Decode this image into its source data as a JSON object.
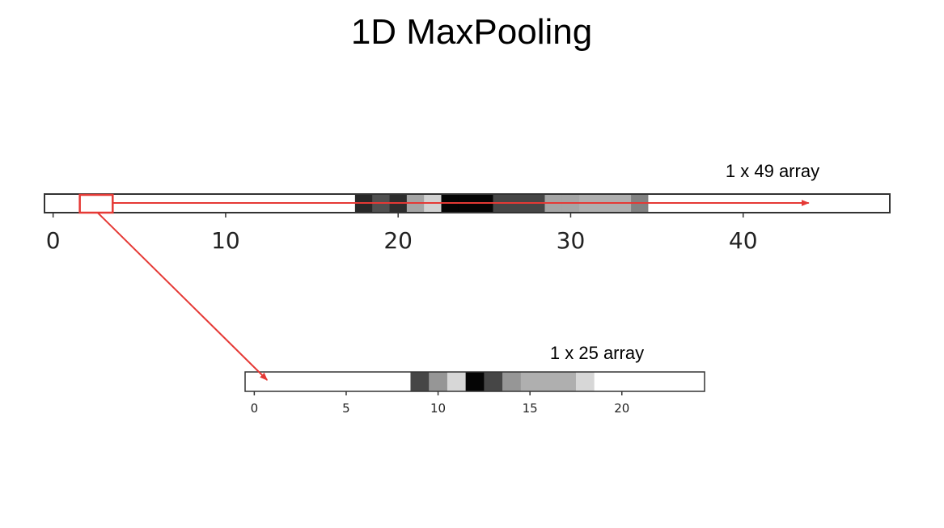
{
  "title": "1D MaxPooling",
  "input_array": {
    "label": "1 x 49 array",
    "length": 49,
    "tick_values": [
      0,
      10,
      20,
      30,
      40
    ],
    "cells": [
      255,
      255,
      255,
      255,
      255,
      255,
      255,
      255,
      255,
      255,
      255,
      255,
      255,
      255,
      255,
      255,
      255,
      255,
      40,
      80,
      45,
      165,
      210,
      5,
      5,
      5,
      70,
      70,
      70,
      165,
      165,
      175,
      175,
      175,
      130,
      255,
      255,
      255,
      255,
      255,
      255,
      255,
      255,
      255,
      255,
      255,
      255,
      255,
      255
    ],
    "window_start_index": 2,
    "window_size": 2
  },
  "output_array": {
    "label": "1 x 25 array",
    "length": 25,
    "tick_values": [
      0,
      5,
      10,
      15,
      20
    ],
    "cells": [
      255,
      255,
      255,
      255,
      255,
      255,
      255,
      255,
      255,
      70,
      150,
      215,
      5,
      70,
      150,
      175,
      175,
      175,
      215,
      255,
      255,
      255,
      255,
      255,
      255
    ]
  },
  "colors": {
    "accent": "#e53935",
    "outline": "#333333"
  }
}
